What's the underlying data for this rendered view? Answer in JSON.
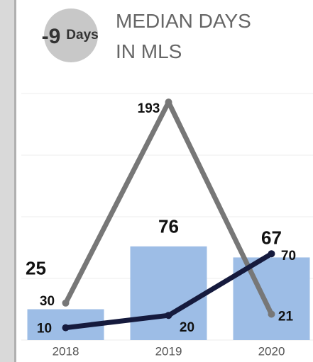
{
  "chart_data": {
    "type": "combo",
    "title": "MEDIAN DAYS IN MLS",
    "kpi": {
      "value": -9,
      "unit": "Days"
    },
    "categories": [
      "2018",
      "2019",
      "2020"
    ],
    "ylim": [
      0,
      200
    ],
    "yticks": [
      0,
      50,
      100,
      150,
      200
    ],
    "grid": true,
    "series": [
      {
        "type": "bar",
        "color": "#9dbde6",
        "values": [
          25,
          76,
          67
        ]
      },
      {
        "type": "line",
        "color": "#777777",
        "values": [
          30,
          193,
          21
        ]
      },
      {
        "type": "line",
        "color": "#151a3d",
        "values": [
          10,
          20,
          70
        ]
      }
    ]
  }
}
